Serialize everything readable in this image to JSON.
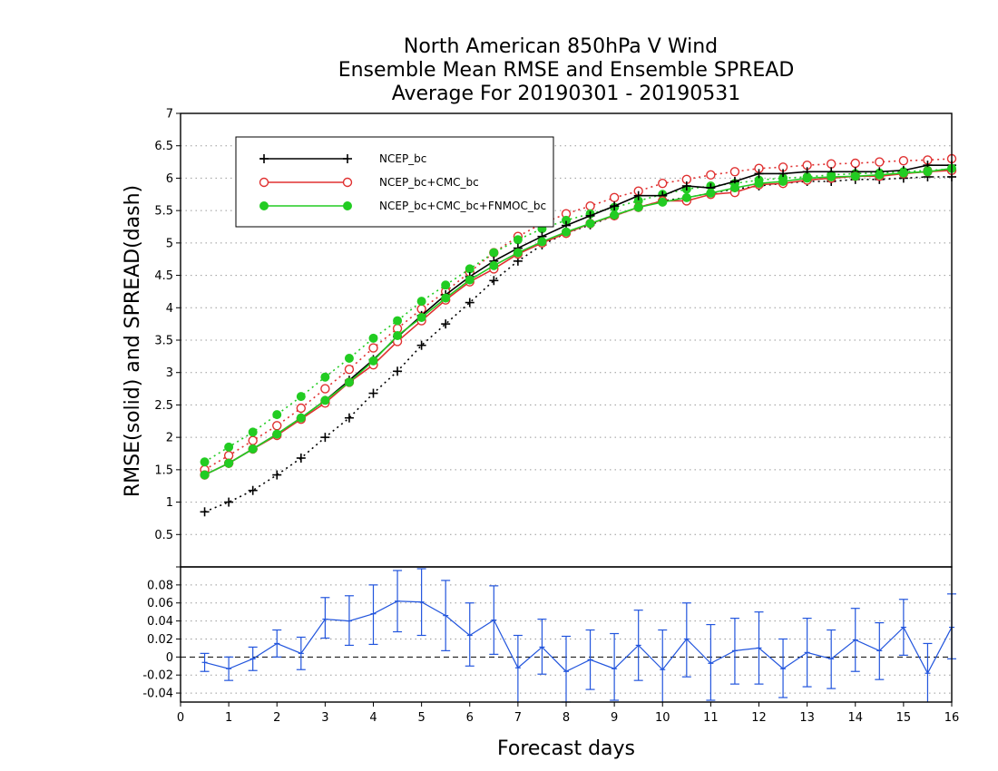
{
  "chart_data": [
    {
      "type": "line",
      "title": [
        "North American 850hPa V Wind",
        "Ensemble Mean RMSE and Ensemble SPREAD",
        "Average For 20190301 - 20190531"
      ],
      "ylabel": "RMSE(solid) and SPREAD(dash)",
      "xlim": [
        0,
        16
      ],
      "ylim": [
        0,
        7
      ],
      "yticks": [
        "0.5",
        "1",
        "1.5",
        "2",
        "2.5",
        "3",
        "3.5",
        "4",
        "4.5",
        "5",
        "5.5",
        "6",
        "6.5",
        "7"
      ],
      "grid": true,
      "legend": "top-left",
      "x": [
        0.5,
        1,
        1.5,
        2,
        2.5,
        3,
        3.5,
        4,
        4.5,
        5,
        5.5,
        6,
        6.5,
        7,
        7.5,
        8,
        8.5,
        9,
        9.5,
        10,
        10.5,
        11,
        11.5,
        12,
        12.5,
        13,
        13.5,
        14,
        14.5,
        15,
        15.5,
        16
      ],
      "series": [
        {
          "name": "NCEP_bc",
          "color": "#000000",
          "marker": "plus",
          "rmse": [
            1.42,
            1.6,
            1.82,
            2.05,
            2.3,
            2.57,
            2.88,
            3.2,
            3.55,
            3.88,
            4.2,
            4.48,
            4.72,
            4.92,
            5.1,
            5.27,
            5.42,
            5.57,
            5.73,
            5.73,
            5.88,
            5.85,
            5.95,
            6.07,
            6.07,
            6.1,
            6.1,
            6.1,
            6.1,
            6.12,
            6.2,
            6.2
          ],
          "spread": [
            0.85,
            1.0,
            1.18,
            1.42,
            1.68,
            2.0,
            2.3,
            2.68,
            3.02,
            3.42,
            3.75,
            4.08,
            4.42,
            4.72,
            4.97,
            5.15,
            5.28,
            5.42,
            5.55,
            5.65,
            5.7,
            5.77,
            5.83,
            5.88,
            5.92,
            5.95,
            5.95,
            5.98,
            5.98,
            6.0,
            6.02,
            6.02
          ]
        },
        {
          "name": "NCEP_bc+CMC_bc",
          "color": "#e03030",
          "marker": "open-circle",
          "rmse": [
            1.42,
            1.6,
            1.82,
            2.03,
            2.28,
            2.53,
            2.85,
            3.12,
            3.48,
            3.8,
            4.12,
            4.4,
            4.6,
            4.83,
            5.0,
            5.15,
            5.3,
            5.42,
            5.55,
            5.65,
            5.65,
            5.75,
            5.78,
            5.9,
            5.92,
            5.97,
            6.0,
            6.03,
            6.03,
            6.07,
            6.1,
            6.12
          ],
          "spread": [
            1.5,
            1.72,
            1.95,
            2.18,
            2.45,
            2.75,
            3.05,
            3.38,
            3.68,
            3.98,
            4.25,
            4.55,
            4.85,
            5.1,
            5.3,
            5.45,
            5.57,
            5.7,
            5.8,
            5.92,
            5.98,
            6.05,
            6.1,
            6.15,
            6.17,
            6.2,
            6.22,
            6.23,
            6.25,
            6.27,
            6.28,
            6.3
          ]
        },
        {
          "name": "NCEP_bc+CMC_bc+FNMOC_bc",
          "color": "#22cc22",
          "marker": "filled-circle",
          "rmse": [
            1.42,
            1.6,
            1.82,
            2.05,
            2.3,
            2.57,
            2.85,
            3.18,
            3.57,
            3.85,
            4.15,
            4.43,
            4.65,
            4.85,
            5.02,
            5.17,
            5.3,
            5.43,
            5.55,
            5.63,
            5.7,
            5.77,
            5.85,
            5.92,
            5.95,
            6.0,
            6.02,
            6.03,
            6.05,
            6.08,
            6.1,
            6.15
          ],
          "spread": [
            1.62,
            1.85,
            2.08,
            2.35,
            2.63,
            2.93,
            3.22,
            3.53,
            3.8,
            4.1,
            4.35,
            4.6,
            4.85,
            5.05,
            5.22,
            5.35,
            5.45,
            5.55,
            5.65,
            5.75,
            5.83,
            5.88,
            5.92,
            5.97,
            6.0,
            6.02,
            6.05,
            6.07,
            6.08,
            6.1,
            6.12,
            6.14
          ]
        }
      ]
    },
    {
      "type": "line",
      "title": "",
      "xlabel": "Forecast days",
      "xlim": [
        0,
        16
      ],
      "ylim": [
        -0.05,
        0.1
      ],
      "xticks": [
        "0",
        "1",
        "2",
        "3",
        "4",
        "5",
        "6",
        "7",
        "8",
        "9",
        "10",
        "11",
        "12",
        "13",
        "14",
        "15",
        "16"
      ],
      "yticks": [
        "-0.04",
        "-0.02",
        "0",
        "0.02",
        "0.04",
        "0.06",
        "0.08"
      ],
      "ytick_top": "0",
      "grid": true,
      "reference_line": 0,
      "x": [
        0.5,
        1,
        1.5,
        2,
        2.5,
        3,
        3.5,
        4,
        4.5,
        5,
        5.5,
        6,
        6.5,
        7,
        7.5,
        8,
        8.5,
        9,
        9.5,
        10,
        10.5,
        11,
        11.5,
        12,
        12.5,
        13,
        13.5,
        14,
        14.5,
        15,
        15.5,
        16
      ],
      "series": [
        {
          "color": "#2255dd",
          "values": [
            -0.006,
            -0.013,
            -0.002,
            0.015,
            0.004,
            0.042,
            0.04,
            0.048,
            0.062,
            0.061,
            0.046,
            0.024,
            0.041,
            -0.012,
            0.011,
            -0.016,
            -0.003,
            -0.013,
            0.013,
            -0.014,
            0.02,
            -0.007,
            0.007,
            0.01,
            -0.013,
            0.005,
            -0.002,
            0.019,
            0.007,
            0.033,
            -0.018,
            0.033
          ],
          "error_low": [
            -0.016,
            -0.026,
            -0.015,
            0.0,
            -0.014,
            0.021,
            0.013,
            0.014,
            0.028,
            0.024,
            0.007,
            -0.01,
            0.003,
            -0.055,
            -0.019,
            -0.05,
            -0.036,
            -0.048,
            -0.026,
            -0.058,
            -0.022,
            -0.048,
            -0.03,
            -0.03,
            -0.045,
            -0.033,
            -0.035,
            -0.016,
            -0.025,
            0.002,
            -0.055,
            -0.002
          ],
          "error_high": [
            0.004,
            0.0,
            0.011,
            0.03,
            0.022,
            0.066,
            0.068,
            0.08,
            0.096,
            0.098,
            0.085,
            0.06,
            0.079,
            0.024,
            0.042,
            0.023,
            0.03,
            0.026,
            0.052,
            0.03,
            0.06,
            0.036,
            0.043,
            0.05,
            0.02,
            0.043,
            0.03,
            0.054,
            0.038,
            0.064,
            0.015,
            0.07
          ]
        }
      ]
    }
  ]
}
